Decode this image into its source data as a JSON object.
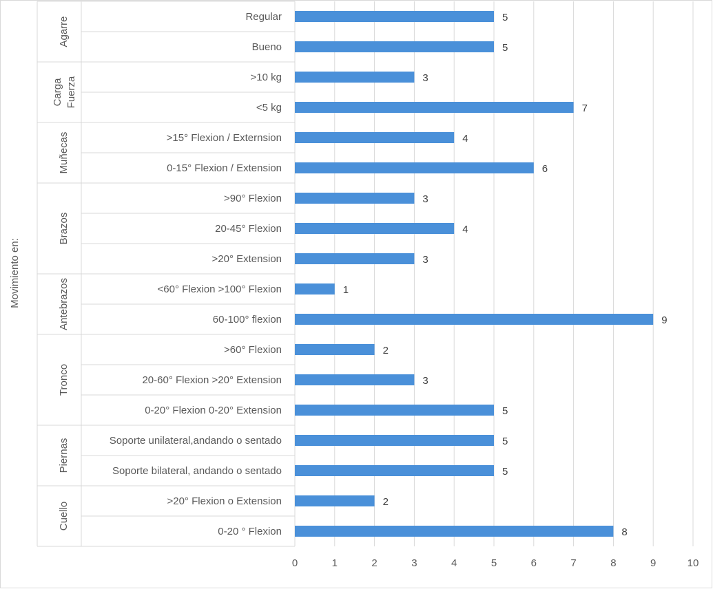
{
  "chart_data": {
    "type": "bar",
    "orientation": "horizontal",
    "ylabel": "Movimiento en:",
    "xlim": [
      0,
      10
    ],
    "x_ticks": [
      "0",
      "1",
      "2",
      "3",
      "4",
      "5",
      "6",
      "7",
      "8",
      "9",
      "10"
    ],
    "grid": true,
    "bar_color": "#4a90d9",
    "groups": [
      {
        "label": "Agarre",
        "categories": [
          {
            "label": "Regular",
            "value": 5
          },
          {
            "label": "Bueno",
            "value": 5
          }
        ]
      },
      {
        "label": "Carga Fuerza",
        "label_lines": [
          "Carga",
          "Fuerza"
        ],
        "categories": [
          {
            "label": ">10 kg",
            "value": 3
          },
          {
            "label": "<5 kg",
            "value": 7
          }
        ]
      },
      {
        "label": "Muñecas",
        "categories": [
          {
            "label": ">15° Flexion / Externsion",
            "value": 4
          },
          {
            "label": "0-15° Flexion / Extension",
            "value": 6
          }
        ]
      },
      {
        "label": "Brazos",
        "categories": [
          {
            "label": ">90° Flexion",
            "value": 3
          },
          {
            "label": "20-45° Flexion",
            "value": 4
          },
          {
            "label": ">20° Extension",
            "value": 3
          }
        ]
      },
      {
        "label": "Antebrazos",
        "categories": [
          {
            "label": "<60° Flexion >100° Flexion",
            "value": 1
          },
          {
            "label": "60-100° flexion",
            "value": 9
          }
        ]
      },
      {
        "label": "Tronco",
        "categories": [
          {
            "label": ">60° Flexion",
            "value": 2
          },
          {
            "label": "20-60° Flexion >20° Extension",
            "value": 3
          },
          {
            "label": "0-20° Flexion 0-20° Extension",
            "value": 5
          }
        ]
      },
      {
        "label": "Piernas",
        "categories": [
          {
            "label": "Soporte unilateral,andando o sentado",
            "value": 5
          },
          {
            "label": "Soporte bilateral, andando o sentado",
            "value": 5
          }
        ]
      },
      {
        "label": "Cuello",
        "categories": [
          {
            "label": ">20° Flexion o Extension",
            "value": 2
          },
          {
            "label": "0-20 ° Flexion",
            "value": 8
          }
        ]
      }
    ]
  }
}
